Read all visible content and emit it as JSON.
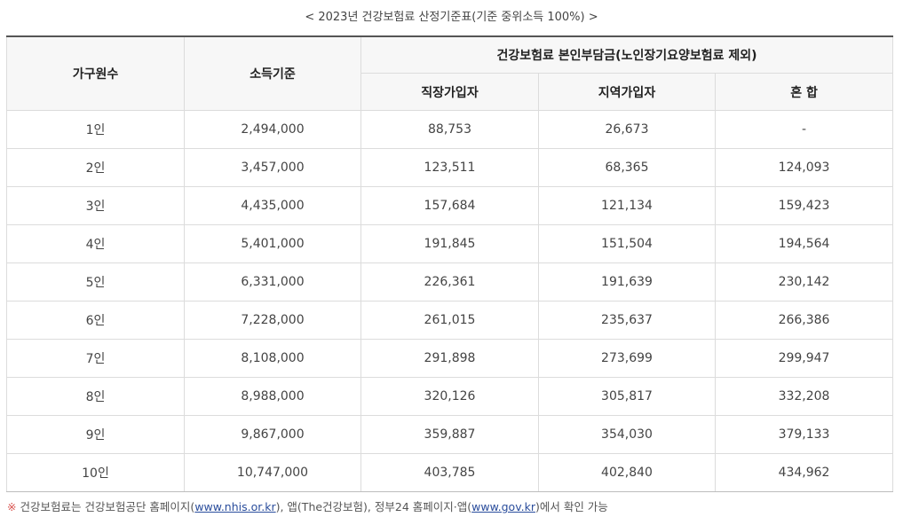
{
  "caption": "< 2023년 건강보험료 산정기준표(기준 중위소득 100%) >",
  "table": {
    "headers": {
      "household": "가구원수",
      "income": "소득기준",
      "premium_group": "건강보험료 본인부담금(노인장기요양보험료 제외)",
      "employee": "직장가입자",
      "regional": "지역가입자",
      "mixed": "혼 합"
    },
    "rows": [
      {
        "household": "1인",
        "income": "2,494,000",
        "employee": "88,753",
        "regional": "26,673",
        "mixed": "-"
      },
      {
        "household": "2인",
        "income": "3,457,000",
        "employee": "123,511",
        "regional": "68,365",
        "mixed": "124,093"
      },
      {
        "household": "3인",
        "income": "4,435,000",
        "employee": "157,684",
        "regional": "121,134",
        "mixed": "159,423"
      },
      {
        "household": "4인",
        "income": "5,401,000",
        "employee": "191,845",
        "regional": "151,504",
        "mixed": "194,564"
      },
      {
        "household": "5인",
        "income": "6,331,000",
        "employee": "226,361",
        "regional": "191,639",
        "mixed": "230,142"
      },
      {
        "household": "6인",
        "income": "7,228,000",
        "employee": "261,015",
        "regional": "235,637",
        "mixed": "266,386"
      },
      {
        "household": "7인",
        "income": "8,108,000",
        "employee": "291,898",
        "regional": "273,699",
        "mixed": "299,947"
      },
      {
        "household": "8인",
        "income": "8,988,000",
        "employee": "320,126",
        "regional": "305,817",
        "mixed": "332,208"
      },
      {
        "household": "9인",
        "income": "9,867,000",
        "employee": "359,887",
        "regional": "354,030",
        "mixed": "379,133"
      },
      {
        "household": "10인",
        "income": "10,747,000",
        "employee": "403,785",
        "regional": "402,840",
        "mixed": "434,962"
      }
    ]
  },
  "footnote": {
    "mark": "※",
    "part1": "건강보험료는 건강보험공단 홈페이지(",
    "link1": "www.nhis.or.kr",
    "part2": "), 앱(The건강보험), 정부24 홈페이지·앱(",
    "link2": "www.gov.kr",
    "part3": ")에서 확인 가능"
  },
  "colors": {
    "header_bg": "#f7f7f7",
    "border": "#dcdcdc",
    "top_rule": "#555555",
    "link": "#2a4d9c",
    "note_mark": "#d9534f"
  }
}
